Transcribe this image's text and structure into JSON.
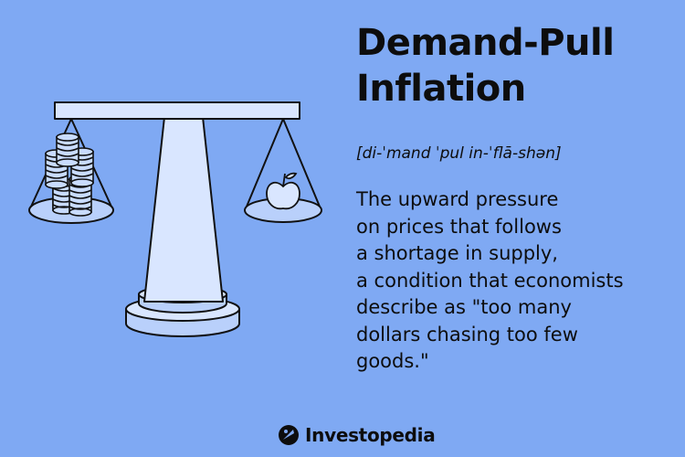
{
  "title": {
    "line1": "Demand-Pull",
    "line2": "Inflation"
  },
  "pronunciation": "[di-ˈmand ˈpul in-ˈflā-shən]",
  "definition": {
    "lines": [
      "The upward pressure",
      "on prices that follows",
      "a shortage in supply,",
      "a condition that economists",
      "describe as \"too many",
      "dollars chasing too few",
      "goods.\""
    ]
  },
  "brand": {
    "name": "Investopedia",
    "icon": "investopedia-logo-icon"
  },
  "illustration": {
    "icons": [
      "balance-scale-icon",
      "coin-stacks-icon",
      "apple-icon"
    ]
  },
  "colors": {
    "background": "#7fa9f3",
    "ink": "#0d0d0d",
    "panel": "#b9d0fb",
    "fill": "#d9e6ff"
  }
}
